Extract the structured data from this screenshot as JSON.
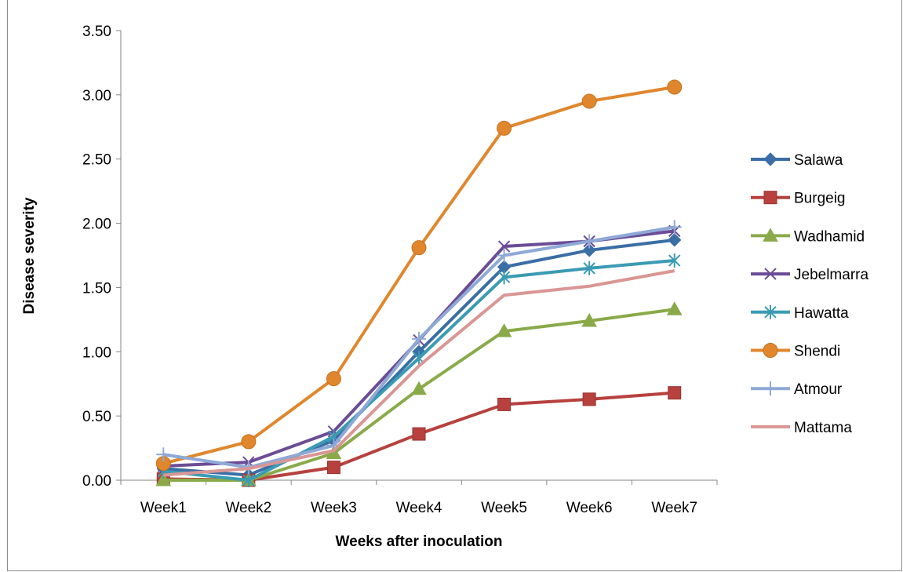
{
  "chart_data": {
    "type": "line",
    "title": "",
    "xlabel": "Weeks after inoculation",
    "ylabel": "Disease severity",
    "categories": [
      "Week1",
      "Week2",
      "Week3",
      "Week4",
      "Week5",
      "Week6",
      "Week7"
    ],
    "ylim": [
      0,
      3.5
    ],
    "yticks": [
      "0.00",
      "0.50",
      "1.00",
      "1.50",
      "2.00",
      "2.50",
      "3.00",
      "3.50"
    ],
    "grid": false,
    "legend_position": "right",
    "series": [
      {
        "name": "Salawa",
        "color": "#3a6ea5",
        "marker": "diamond",
        "values": [
          0.09,
          0.04,
          0.31,
          1.0,
          1.66,
          1.79,
          1.87
        ]
      },
      {
        "name": "Burgeig",
        "color": "#b7413e",
        "marker": "square",
        "values": [
          0.01,
          0.0,
          0.1,
          0.36,
          0.59,
          0.63,
          0.68
        ]
      },
      {
        "name": "Wadhamid",
        "color": "#8aaa4a",
        "marker": "triangle",
        "values": [
          0.0,
          0.0,
          0.21,
          0.71,
          1.16,
          1.24,
          1.33
        ]
      },
      {
        "name": "Jebelmarra",
        "color": "#6b4c96",
        "marker": "x",
        "values": [
          0.11,
          0.14,
          0.38,
          1.09,
          1.82,
          1.86,
          1.94
        ]
      },
      {
        "name": "Hawatta",
        "color": "#3a9bb3",
        "marker": "asterisk",
        "values": [
          0.07,
          0.0,
          0.34,
          0.95,
          1.58,
          1.65,
          1.71
        ]
      },
      {
        "name": "Shendi",
        "color": "#e0872e",
        "marker": "circle",
        "values": [
          0.13,
          0.3,
          0.79,
          1.81,
          2.74,
          2.95,
          3.06
        ]
      },
      {
        "name": "Atmour",
        "color": "#8fa9d6",
        "marker": "plus",
        "values": [
          0.2,
          0.1,
          0.27,
          1.1,
          1.75,
          1.86,
          1.97
        ]
      },
      {
        "name": "Mattama",
        "color": "#d99694",
        "marker": "none",
        "values": [
          0.04,
          0.09,
          0.23,
          0.89,
          1.44,
          1.51,
          1.63
        ]
      }
    ]
  }
}
